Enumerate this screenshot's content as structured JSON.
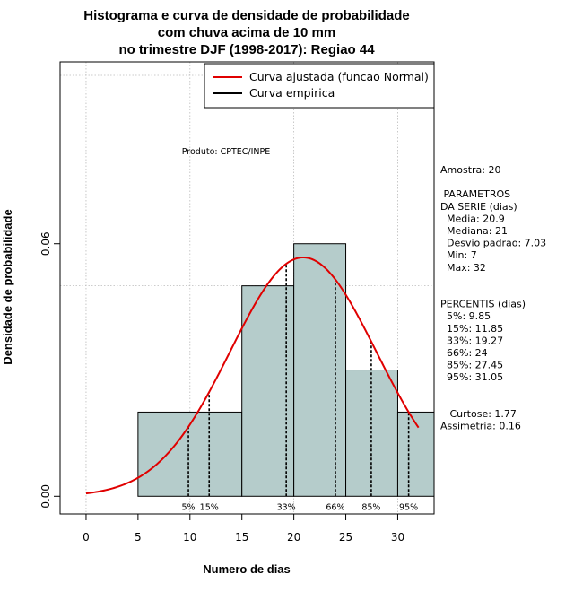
{
  "chart_data": {
    "type": "bar",
    "title_lines": [
      "Histograma e curva de densidade de probabilidade",
      "com chuva acima de 10 mm",
      "no trimestre DJF (1998-2017): Regiao 44"
    ],
    "xlabel": "Numero de dias",
    "ylabel": "Densidade de probabilidade",
    "xlim": [
      -2.5,
      33.5
    ],
    "ylim": [
      -0.0042,
      0.1032
    ],
    "x_ticks": [
      0,
      5,
      10,
      15,
      20,
      25,
      30
    ],
    "y_ticks": [
      0.0,
      0.06
    ],
    "y_tick_labels": [
      "0.00",
      "0.06"
    ],
    "grid": true,
    "grid_x": [
      0,
      10,
      20,
      30
    ],
    "grid_y": [
      0.05,
      0.1
    ],
    "bins": [
      {
        "start": 5,
        "end": 15,
        "density": 0.02
      },
      {
        "start": 15,
        "end": 20,
        "density": 0.05
      },
      {
        "start": 20,
        "end": 25,
        "density": 0.06
      },
      {
        "start": 25,
        "end": 30,
        "density": 0.03
      },
      {
        "start": 30,
        "end": 33.5,
        "density": 0.02
      }
    ],
    "bar_color": "#b5cccb",
    "normal_curve": {
      "mean": 20.9,
      "sd": 7.03,
      "x_from": 0,
      "x_to": 32,
      "color": "#e00000"
    },
    "percentiles": [
      {
        "label": "5%",
        "value": 9.85
      },
      {
        "label": "15%",
        "value": 11.85
      },
      {
        "label": "33%",
        "value": 19.27
      },
      {
        "label": "66%",
        "value": 24
      },
      {
        "label": "85%",
        "value": 27.45
      },
      {
        "label": "95%",
        "value": 31.05
      }
    ],
    "legend": {
      "position": "top-right",
      "entries": [
        {
          "label": "Curva ajustada (funcao Normal)",
          "color": "#e00000"
        },
        {
          "label": "Curva empirica",
          "color": "#000000"
        }
      ]
    },
    "annotation": "Produto: CPTEC/INPE",
    "stats_panel": [
      "Amostra: 20",
      "",
      " PARAMETROS",
      "DA SERIE (dias)",
      "  Media: 20.9",
      "  Mediana: 21",
      "  Desvio padrao: 7.03",
      "  Min: 7",
      "  Max: 32",
      "",
      "",
      "PERCENTIS (dias)",
      "  5%: 9.85",
      "  15%: 11.85",
      "  33%: 19.27",
      "  66%: 24",
      "  85%: 27.45",
      "  95%: 31.05",
      "",
      "",
      "   Curtose: 1.77",
      "Assimetria: 0.16"
    ]
  }
}
